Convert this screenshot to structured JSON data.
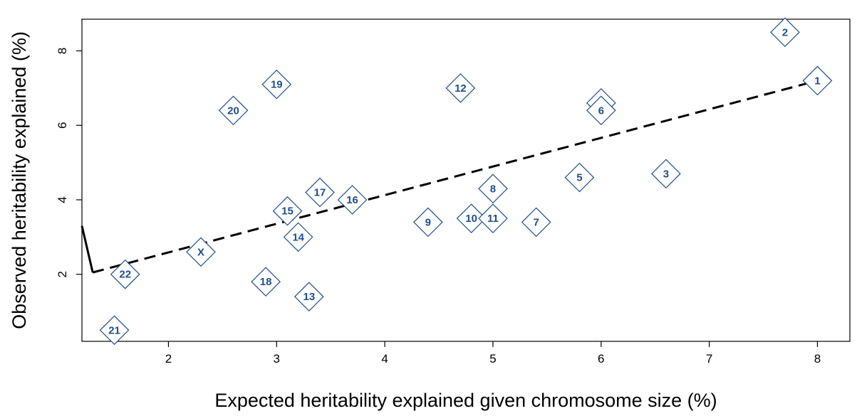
{
  "chart_data": {
    "type": "scatter",
    "xlabel": "Expected heritability explained given chromosome size (%)",
    "ylabel": "Observed heritability explained (%)",
    "xlim": [
      1.2,
      8.3
    ],
    "ylim": [
      0.2,
      8.85
    ],
    "x_ticks": [
      2,
      3,
      4,
      5,
      6,
      7,
      8
    ],
    "y_ticks": [
      2,
      4,
      6,
      8
    ],
    "grid": false,
    "marker": "diamond",
    "marker_color": "#1f4e8c",
    "points": [
      {
        "label": "1",
        "x": 8.0,
        "y": 7.2
      },
      {
        "label": "2",
        "x": 7.7,
        "y": 8.5
      },
      {
        "label": "3",
        "x": 6.6,
        "y": 4.7
      },
      {
        "label": "4",
        "x": 6.0,
        "y": 6.6
      },
      {
        "label": "5",
        "x": 5.8,
        "y": 4.6
      },
      {
        "label": "6",
        "x": 6.0,
        "y": 6.4
      },
      {
        "label": "7",
        "x": 5.4,
        "y": 3.4
      },
      {
        "label": "8",
        "x": 5.0,
        "y": 4.3
      },
      {
        "label": "9",
        "x": 4.4,
        "y": 3.4
      },
      {
        "label": "10",
        "x": 4.8,
        "y": 3.5
      },
      {
        "label": "11",
        "x": 5.0,
        "y": 3.5
      },
      {
        "label": "12",
        "x": 4.7,
        "y": 7.0
      },
      {
        "label": "13",
        "x": 3.3,
        "y": 1.4
      },
      {
        "label": "14",
        "x": 3.2,
        "y": 3.0
      },
      {
        "label": "15",
        "x": 3.1,
        "y": 3.7
      },
      {
        "label": "16",
        "x": 3.7,
        "y": 4.0
      },
      {
        "label": "17",
        "x": 3.4,
        "y": 4.2
      },
      {
        "label": "18",
        "x": 2.9,
        "y": 1.8
      },
      {
        "label": "19",
        "x": 3.0,
        "y": 7.1
      },
      {
        "label": "20",
        "x": 2.6,
        "y": 6.4
      },
      {
        "label": "21",
        "x": 1.5,
        "y": 0.5
      },
      {
        "label": "22",
        "x": 1.6,
        "y": 2.0
      },
      {
        "label": "X",
        "x": 2.3,
        "y": 2.6
      }
    ],
    "trend_line": {
      "style": "dashed",
      "color": "#000000",
      "start": {
        "x": 1.3,
        "y": 2.05
      },
      "end": {
        "x": 8.0,
        "y": 7.2
      }
    },
    "solid_segment": {
      "color": "#000000",
      "start": {
        "x": 1.2,
        "y": 3.3
      },
      "end": {
        "x": 1.3,
        "y": 2.05
      }
    }
  }
}
